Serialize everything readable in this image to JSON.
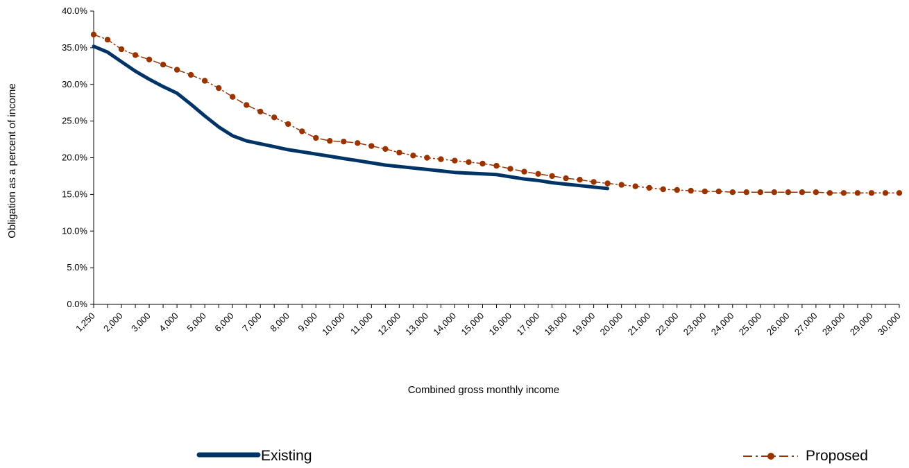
{
  "chart_data": {
    "type": "line",
    "title": "",
    "xlabel": "Combined gross monthly income",
    "ylabel": "Obligation as a percent of income",
    "ylim": [
      0,
      40
    ],
    "y_ticks": [
      "0.0%",
      "5.0%",
      "10.0%",
      "15.0%",
      "20.0%",
      "25.0%",
      "30.0%",
      "35.0%",
      "40.0%"
    ],
    "x_tick_labels": [
      "1,250",
      "2,000",
      "3,000",
      "4,000",
      "5,000",
      "6,000",
      "7,000",
      "8,000",
      "9,000",
      "10,000",
      "11,000",
      "12,000",
      "13,000",
      "14,000",
      "15,000",
      "16,000",
      "17,000",
      "18,000",
      "19,000",
      "20,000",
      "21,000",
      "22,000",
      "23,000",
      "24,000",
      "25,000",
      "26,000",
      "27,000",
      "28,000",
      "29,000",
      "30,000"
    ],
    "grid": false,
    "legend_position": "bottom",
    "series": [
      {
        "name": "Existing",
        "color": "#003366",
        "style": "solid-thick",
        "values": [
          35.2,
          34.4,
          33.1,
          31.8,
          30.7,
          29.7,
          28.8,
          27.3,
          25.7,
          24.2,
          23.0,
          22.3,
          21.9,
          21.5,
          21.1,
          20.8,
          20.5,
          20.2,
          19.9,
          19.6,
          19.3,
          19.0,
          18.8,
          18.6,
          18.4,
          18.2,
          18.0,
          17.9,
          17.8,
          17.7,
          17.4,
          17.1,
          16.9,
          16.6,
          16.4,
          16.2,
          16.0,
          15.8
        ]
      },
      {
        "name": "Proposed",
        "color": "#993300",
        "style": "dash-dot-markers",
        "values": [
          36.8,
          36.1,
          34.8,
          34.0,
          33.4,
          32.7,
          32.0,
          31.3,
          30.5,
          29.5,
          28.3,
          27.2,
          26.3,
          25.5,
          24.6,
          23.6,
          22.7,
          22.3,
          22.2,
          22.0,
          21.6,
          21.2,
          20.7,
          20.3,
          20.0,
          19.8,
          19.6,
          19.4,
          19.2,
          18.9,
          18.5,
          18.1,
          17.8,
          17.5,
          17.2,
          17.0,
          16.7,
          16.5,
          16.3,
          16.1,
          15.9,
          15.7,
          15.6,
          15.5,
          15.4,
          15.4,
          15.3,
          15.3,
          15.3,
          15.3,
          15.3,
          15.3,
          15.3,
          15.2,
          15.2,
          15.2,
          15.2,
          15.2,
          15.2
        ]
      }
    ]
  }
}
